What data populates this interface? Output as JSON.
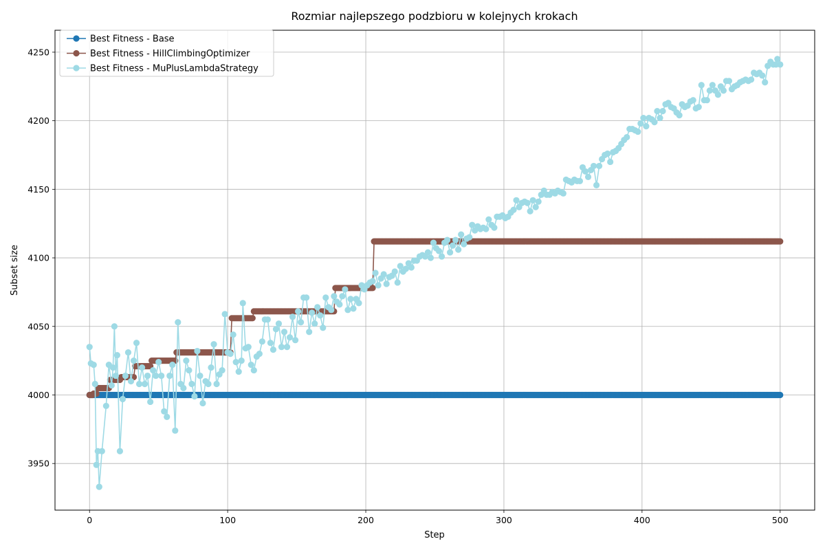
{
  "chart_data": {
    "type": "line",
    "title": "Rozmiar najlepszego podzbioru w kolejnych krokach",
    "xlabel": "Step",
    "ylabel": "Subset size",
    "xlim": [
      -25,
      525
    ],
    "ylim": [
      3916,
      4266
    ],
    "xticks": [
      0,
      100,
      200,
      300,
      400,
      500
    ],
    "yticks": [
      3950,
      4000,
      4050,
      4100,
      4150,
      4200,
      4250
    ],
    "grid": true,
    "legend_position": "top-left",
    "series": [
      {
        "name": "Best Fitness - Base",
        "color": "#1f77b4",
        "steps": [
          [
            0,
            4000
          ],
          [
            500,
            4000
          ]
        ]
      },
      {
        "name": "Best Fitness - HillClimbingOptimizer",
        "color": "#8c564b",
        "steps": [
          [
            0,
            4000
          ],
          [
            3,
            4001
          ],
          [
            6,
            4005
          ],
          [
            15,
            4011
          ],
          [
            23,
            4013
          ],
          [
            33,
            4021
          ],
          [
            45,
            4025
          ],
          [
            63,
            4031
          ],
          [
            103,
            4056
          ],
          [
            119,
            4061
          ],
          [
            178,
            4078
          ],
          [
            206,
            4112
          ],
          [
            500,
            4112
          ]
        ]
      },
      {
        "name": "Best Fitness - MuPlusLambdaStrategy",
        "color": "#9edae5",
        "points": [
          [
            0,
            4035
          ],
          [
            1,
            4023
          ],
          [
            3,
            4022
          ],
          [
            4,
            4008
          ],
          [
            5,
            3949
          ],
          [
            6,
            3959
          ],
          [
            7,
            3933
          ],
          [
            9,
            3959
          ],
          [
            12,
            3992
          ],
          [
            14,
            4022
          ],
          [
            16,
            4007
          ],
          [
            17,
            4020
          ],
          [
            18,
            4050
          ],
          [
            19,
            4014
          ],
          [
            20,
            4029
          ],
          [
            22,
            3959
          ],
          [
            24,
            3997
          ],
          [
            26,
            4014
          ],
          [
            28,
            4031
          ],
          [
            30,
            4010
          ],
          [
            32,
            4025
          ],
          [
            34,
            4038
          ],
          [
            36,
            4008
          ],
          [
            38,
            4020
          ],
          [
            40,
            4008
          ],
          [
            42,
            4014
          ],
          [
            44,
            3995
          ],
          [
            46,
            4018
          ],
          [
            48,
            4014
          ],
          [
            50,
            4024
          ],
          [
            52,
            4014
          ],
          [
            54,
            3988
          ],
          [
            56,
            3984
          ],
          [
            58,
            4014
          ],
          [
            60,
            4022
          ],
          [
            62,
            3974
          ],
          [
            64,
            4053
          ],
          [
            66,
            4008
          ],
          [
            68,
            4005
          ],
          [
            70,
            4025
          ],
          [
            72,
            4018
          ],
          [
            74,
            4008
          ],
          [
            76,
            3999
          ],
          [
            78,
            4032
          ],
          [
            80,
            4014
          ],
          [
            82,
            3994
          ],
          [
            84,
            4010
          ],
          [
            86,
            4008
          ],
          [
            88,
            4020
          ],
          [
            90,
            4037
          ],
          [
            92,
            4008
          ],
          [
            94,
            4015
          ],
          [
            96,
            4018
          ],
          [
            98,
            4059
          ],
          [
            100,
            4031
          ],
          [
            102,
            4030
          ],
          [
            104,
            4044
          ],
          [
            106,
            4024
          ],
          [
            108,
            4017
          ],
          [
            110,
            4025
          ],
          [
            111,
            4067
          ],
          [
            113,
            4034
          ],
          [
            115,
            4035
          ],
          [
            117,
            4022
          ],
          [
            119,
            4018
          ],
          [
            121,
            4028
          ],
          [
            123,
            4030
          ],
          [
            125,
            4039
          ],
          [
            127,
            4055
          ],
          [
            129,
            4055
          ],
          [
            131,
            4038
          ],
          [
            133,
            4033
          ],
          [
            135,
            4048
          ],
          [
            137,
            4052
          ],
          [
            139,
            4035
          ],
          [
            141,
            4046
          ],
          [
            143,
            4035
          ],
          [
            145,
            4042
          ],
          [
            147,
            4057
          ],
          [
            149,
            4040
          ],
          [
            151,
            4061
          ],
          [
            153,
            4053
          ],
          [
            155,
            4071
          ],
          [
            157,
            4071
          ],
          [
            159,
            4046
          ],
          [
            161,
            4060
          ],
          [
            163,
            4052
          ],
          [
            165,
            4064
          ],
          [
            167,
            4058
          ],
          [
            169,
            4049
          ],
          [
            171,
            4071
          ],
          [
            173,
            4064
          ],
          [
            175,
            4062
          ],
          [
            177,
            4072
          ],
          [
            179,
            4068
          ],
          [
            181,
            4066
          ],
          [
            183,
            4072
          ],
          [
            185,
            4077
          ],
          [
            187,
            4062
          ],
          [
            189,
            4070
          ],
          [
            191,
            4063
          ],
          [
            193,
            4070
          ],
          [
            195,
            4067
          ],
          [
            197,
            4080
          ],
          [
            199,
            4077
          ],
          [
            201,
            4080
          ],
          [
            203,
            4082
          ],
          [
            205,
            4083
          ],
          [
            207,
            4089
          ],
          [
            209,
            4080
          ],
          [
            211,
            4085
          ],
          [
            213,
            4088
          ],
          [
            215,
            4081
          ],
          [
            217,
            4086
          ],
          [
            219,
            4087
          ],
          [
            221,
            4090
          ],
          [
            223,
            4082
          ],
          [
            225,
            4094
          ],
          [
            227,
            4090
          ],
          [
            229,
            4092
          ],
          [
            231,
            4096
          ],
          [
            233,
            4093
          ],
          [
            235,
            4098
          ],
          [
            237,
            4098
          ],
          [
            239,
            4101
          ],
          [
            241,
            4102
          ],
          [
            243,
            4101
          ],
          [
            245,
            4104
          ],
          [
            247,
            4100
          ],
          [
            249,
            4111
          ],
          [
            251,
            4107
          ],
          [
            253,
            4105
          ],
          [
            255,
            4101
          ],
          [
            257,
            4111
          ],
          [
            259,
            4113
          ],
          [
            261,
            4104
          ],
          [
            263,
            4109
          ],
          [
            265,
            4113
          ],
          [
            267,
            4106
          ],
          [
            269,
            4117
          ],
          [
            271,
            4110
          ],
          [
            273,
            4114
          ],
          [
            275,
            4115
          ],
          [
            277,
            4124
          ],
          [
            279,
            4120
          ],
          [
            281,
            4123
          ],
          [
            283,
            4121
          ],
          [
            285,
            4122
          ],
          [
            287,
            4121
          ],
          [
            289,
            4128
          ],
          [
            291,
            4124
          ],
          [
            293,
            4122
          ],
          [
            295,
            4130
          ],
          [
            297,
            4130
          ],
          [
            299,
            4131
          ],
          [
            301,
            4129
          ],
          [
            303,
            4130
          ],
          [
            305,
            4133
          ],
          [
            307,
            4135
          ],
          [
            309,
            4142
          ],
          [
            311,
            4137
          ],
          [
            313,
            4140
          ],
          [
            315,
            4141
          ],
          [
            317,
            4140
          ],
          [
            319,
            4134
          ],
          [
            321,
            4142
          ],
          [
            323,
            4137
          ],
          [
            325,
            4141
          ],
          [
            327,
            4146
          ],
          [
            329,
            4149
          ],
          [
            331,
            4146
          ],
          [
            333,
            4146
          ],
          [
            335,
            4148
          ],
          [
            337,
            4147
          ],
          [
            339,
            4149
          ],
          [
            341,
            4148
          ],
          [
            343,
            4147
          ],
          [
            345,
            4157
          ],
          [
            347,
            4156
          ],
          [
            349,
            4155
          ],
          [
            351,
            4157
          ],
          [
            353,
            4156
          ],
          [
            355,
            4156
          ],
          [
            357,
            4166
          ],
          [
            359,
            4163
          ],
          [
            361,
            4159
          ],
          [
            363,
            4164
          ],
          [
            365,
            4167
          ],
          [
            367,
            4153
          ],
          [
            369,
            4167
          ],
          [
            371,
            4172
          ],
          [
            373,
            4175
          ],
          [
            375,
            4176
          ],
          [
            377,
            4170
          ],
          [
            379,
            4177
          ],
          [
            381,
            4178
          ],
          [
            383,
            4180
          ],
          [
            385,
            4183
          ],
          [
            387,
            4186
          ],
          [
            389,
            4188
          ],
          [
            391,
            4194
          ],
          [
            393,
            4194
          ],
          [
            395,
            4193
          ],
          [
            397,
            4192
          ],
          [
            399,
            4198
          ],
          [
            401,
            4202
          ],
          [
            403,
            4196
          ],
          [
            405,
            4202
          ],
          [
            407,
            4201
          ],
          [
            409,
            4199
          ],
          [
            411,
            4207
          ],
          [
            413,
            4202
          ],
          [
            415,
            4207
          ],
          [
            417,
            4212
          ],
          [
            419,
            4213
          ],
          [
            421,
            4210
          ],
          [
            423,
            4209
          ],
          [
            425,
            4206
          ],
          [
            427,
            4204
          ],
          [
            429,
            4212
          ],
          [
            431,
            4210
          ],
          [
            433,
            4211
          ],
          [
            435,
            4214
          ],
          [
            437,
            4215
          ],
          [
            439,
            4209
          ],
          [
            441,
            4210
          ],
          [
            443,
            4226
          ],
          [
            445,
            4215
          ],
          [
            447,
            4215
          ],
          [
            449,
            4222
          ],
          [
            451,
            4226
          ],
          [
            453,
            4222
          ],
          [
            455,
            4219
          ],
          [
            457,
            4225
          ],
          [
            459,
            4222
          ],
          [
            461,
            4229
          ],
          [
            463,
            4229
          ],
          [
            465,
            4223
          ],
          [
            467,
            4225
          ],
          [
            469,
            4226
          ],
          [
            471,
            4228
          ],
          [
            473,
            4229
          ],
          [
            475,
            4230
          ],
          [
            477,
            4229
          ],
          [
            479,
            4230
          ],
          [
            481,
            4235
          ],
          [
            483,
            4234
          ],
          [
            485,
            4235
          ],
          [
            487,
            4233
          ],
          [
            489,
            4228
          ],
          [
            491,
            4240
          ],
          [
            493,
            4243
          ],
          [
            495,
            4241
          ],
          [
            497,
            4241
          ],
          [
            498,
            4245
          ],
          [
            500,
            4241
          ]
        ]
      }
    ]
  }
}
